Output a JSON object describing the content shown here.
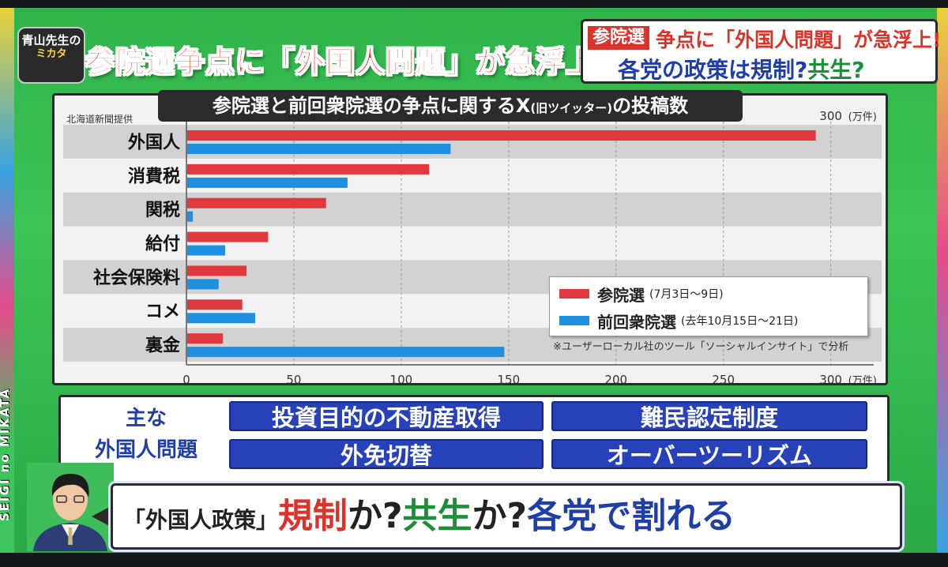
{
  "corner_logo": {
    "line1": "青山先生の",
    "line2": "ミカタ"
  },
  "headline_left": "参院選争点に「外国人問題」が急浮上!",
  "headline_right": {
    "tag": "参院選",
    "line1": "争点に「外国人問題」が急浮上!",
    "line2a": "各党の政策は規制?",
    "line2b": "共生?"
  },
  "vertical_logo": "SEIGI no MIKATA",
  "chart_data": {
    "type": "bar",
    "orientation": "horizontal",
    "title": "参院選と前回衆院選の争点に関するX",
    "title_suffix": "(旧ツイッター)",
    "title_end": "の投稿数",
    "source": "北海道新聞提供",
    "unit": "(万件)",
    "categories": [
      "外国人",
      "消費税",
      "関税",
      "給付",
      "社会保険料",
      "コメ",
      "裏金"
    ],
    "x_ticks": [
      0,
      50,
      100,
      150,
      200,
      250,
      300
    ],
    "xlim": [
      0,
      320
    ],
    "grid": true,
    "legend_position": "bottom-right",
    "series": [
      {
        "name": "参院選",
        "note": "(7月3日〜9日)",
        "color": "#e0383c",
        "values": [
          293,
          113,
          65,
          38,
          28,
          26,
          17
        ]
      },
      {
        "name": "前回衆院選",
        "note": "(去年10月15日〜21日)",
        "color": "#1f8fe0",
        "values": [
          123,
          75,
          3,
          18,
          15,
          32,
          148
        ]
      }
    ],
    "footnote": "※ユーザーローカル社のツール「ソーシャルインサイト」で分析"
  },
  "issues": {
    "label_line1": "主な",
    "label_line2": "外国人問題",
    "items": [
      "投資目的の不動産取得",
      "難民認定制度",
      "外免切替",
      "オーバーツーリズム"
    ]
  },
  "caption": {
    "part1": "「外国人政策」",
    "part2": "規制",
    "part3": "か?",
    "part4": "共生",
    "part5": "か?",
    "part6": "各党で割れる"
  },
  "colors": {
    "accent_red": "#d9342b",
    "accent_blue": "#1f3fa6",
    "accent_green": "#1d8f3a",
    "issue_blue": "#2741b8"
  }
}
